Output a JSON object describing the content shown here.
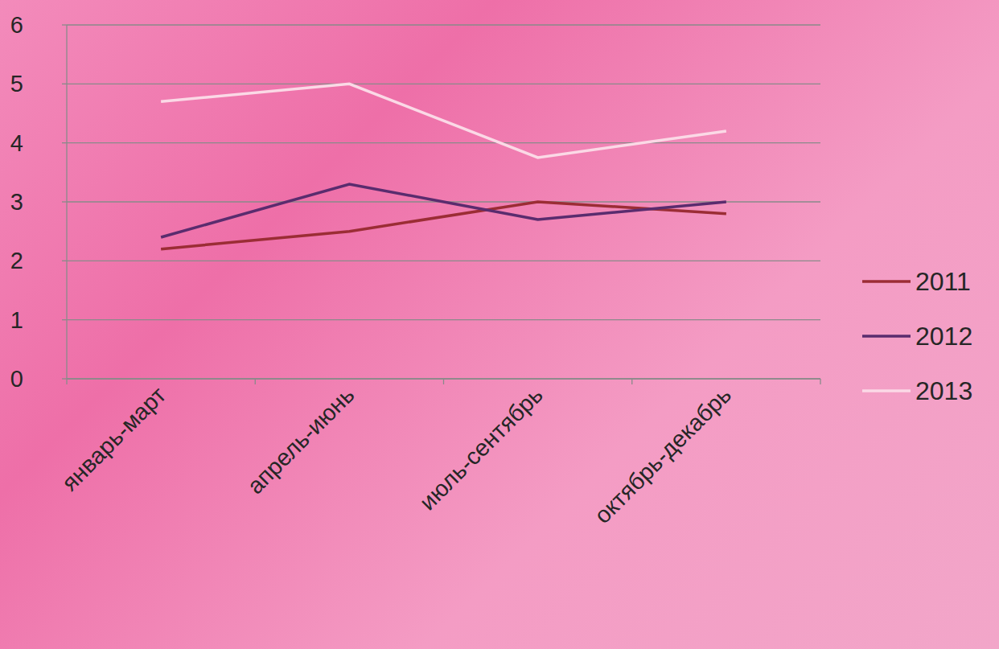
{
  "chart_data": {
    "type": "line",
    "categories": [
      "январь-март",
      "апрель-июнь",
      "июль-сентябрь",
      "октябрь-декабрь"
    ],
    "series": [
      {
        "name": "2011",
        "color": "#9b2d35",
        "values": [
          2.2,
          2.5,
          3.0,
          2.8
        ]
      },
      {
        "name": "2012",
        "color": "#5a2c6e",
        "values": [
          2.4,
          3.3,
          2.7,
          3.0
        ]
      },
      {
        "name": "2013",
        "color": "#fbd9e6",
        "values": [
          4.7,
          5.0,
          3.75,
          4.2
        ]
      }
    ],
    "ylim": [
      0,
      6
    ],
    "yticks": [
      0,
      1,
      2,
      3,
      4,
      5,
      6
    ],
    "grid": true,
    "legend": "right"
  }
}
